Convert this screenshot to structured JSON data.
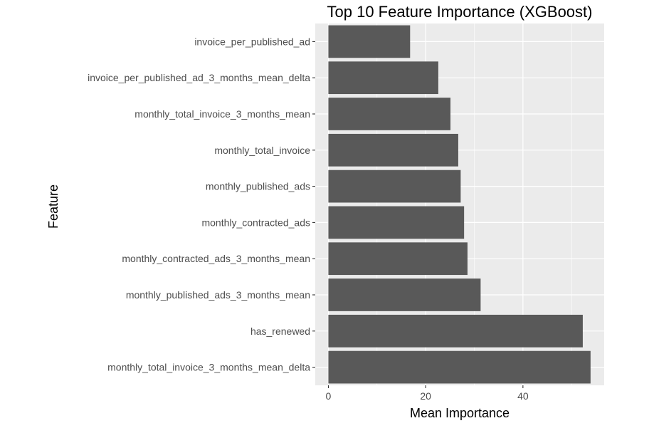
{
  "chart_data": {
    "type": "bar",
    "orientation": "horizontal",
    "title": "Top 10 Feature Importance (XGBoost)",
    "xlabel": "Mean Importance",
    "ylabel": "Feature",
    "xlim": [
      -2.7,
      56.7
    ],
    "xticks": [
      0,
      20,
      40
    ],
    "grid": true,
    "categories": [
      "invoice_per_published_ad",
      "invoice_per_published_ad_3_months_mean_delta",
      "monthly_total_invoice_3_months_mean",
      "monthly_total_invoice",
      "monthly_published_ads",
      "monthly_contracted_ads",
      "monthly_contracted_ads_3_months_mean",
      "monthly_published_ads_3_months_mean",
      "has_renewed",
      "monthly_total_invoice_3_months_mean_delta"
    ],
    "values": [
      16.8,
      22.6,
      25.1,
      26.7,
      27.2,
      27.9,
      28.6,
      31.3,
      52.3,
      53.9
    ],
    "colors": {
      "bar": "#595959",
      "panel": "#ebebeb",
      "grid": "#ffffff"
    }
  }
}
